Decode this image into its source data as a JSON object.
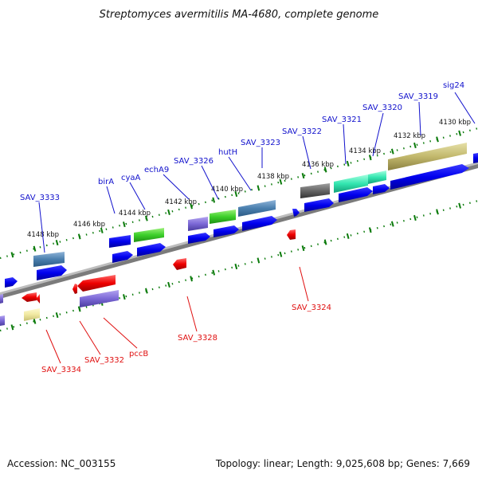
{
  "title": "Streptomyces avermitilis MA-4680, complete genome",
  "accession": "Accession: NC_003155",
  "summary": "Topology: linear; Length: 9,025,608 bp; Genes: 7,669",
  "colors": {
    "forward_label": "#1010cc",
    "reverse_label": "#e01010",
    "backbone": "#777777",
    "tick": "#0a7a0a"
  },
  "kbp_ticks": [
    {
      "label": "4130 kbp"
    },
    {
      "label": "4132 kbp"
    },
    {
      "label": "4134 kbp"
    },
    {
      "label": "4136 kbp"
    },
    {
      "label": "4138 kbp"
    },
    {
      "label": "4140 kbp"
    },
    {
      "label": "4142 kbp"
    },
    {
      "label": "4144 kbp"
    },
    {
      "label": "4146 kbp"
    },
    {
      "label": "4148 kbp"
    }
  ],
  "gene_labels": [
    {
      "text": "sig24",
      "strand": "forward"
    },
    {
      "text": "SAV_3319",
      "strand": "forward"
    },
    {
      "text": "SAV_3320",
      "strand": "forward"
    },
    {
      "text": "SAV_3321",
      "strand": "forward"
    },
    {
      "text": "SAV_3322",
      "strand": "forward"
    },
    {
      "text": "SAV_3323",
      "strand": "forward"
    },
    {
      "text": "hutH",
      "strand": "forward"
    },
    {
      "text": "SAV_3326",
      "strand": "forward"
    },
    {
      "text": "echA9",
      "strand": "forward"
    },
    {
      "text": "cyaA",
      "strand": "forward"
    },
    {
      "text": "birA",
      "strand": "forward"
    },
    {
      "text": "SAV_3333",
      "strand": "forward"
    },
    {
      "text": "SAV_3324",
      "strand": "reverse"
    },
    {
      "text": "SAV_3328",
      "strand": "reverse"
    },
    {
      "text": "pccB",
      "strand": "reverse"
    },
    {
      "text": "SAV_3332",
      "strand": "reverse"
    },
    {
      "text": "SAV_3334",
      "strand": "reverse"
    }
  ]
}
